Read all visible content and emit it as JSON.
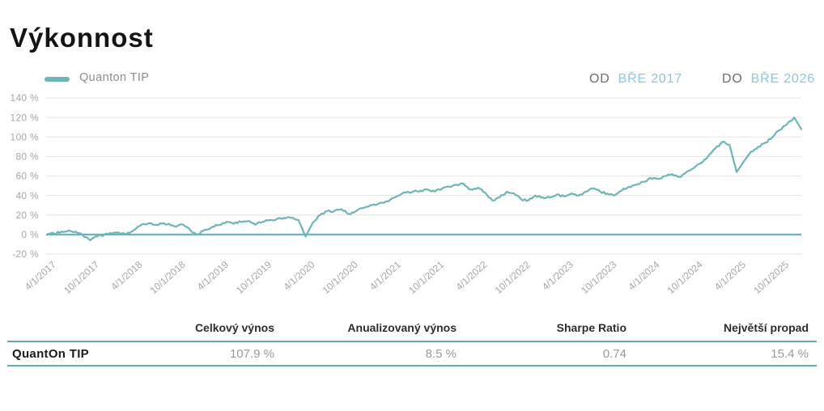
{
  "page": {
    "title": "Výkonnost"
  },
  "colors": {
    "accent_teal": "#6fb4b7",
    "accent_light_blue": "#8cc7e1",
    "grid_line": "#e3e3e3",
    "axis_text": "#a7a7a7",
    "table_border_teal": "#5fadb2"
  },
  "legend": {
    "series_label": "Quanton TIP"
  },
  "range_controls": {
    "from_label": "OD",
    "from_value": "BŘE 2017",
    "to_label": "DO",
    "to_value": "BŘE 2026"
  },
  "chart_data": {
    "type": "line",
    "title": "",
    "legend_position": "top-left",
    "grid": "horizontal-only",
    "zero_baseline": true,
    "y_unit": "%",
    "ylim": [
      -20,
      140
    ],
    "y_tick_labels": [
      "140 %",
      "120 %",
      "100 %",
      "80 %",
      "60 %",
      "40 %",
      "20 %",
      "0 %",
      "-20 %"
    ],
    "x_tick_labels": [
      "4/1/2017",
      "10/1/2017",
      "4/1/2018",
      "10/1/2018",
      "4/1/2019",
      "10/1/2019",
      "4/1/2020",
      "10/1/2020",
      "4/1/2021",
      "10/1/2021",
      "4/1/2022",
      "10/1/2022",
      "4/1/2023",
      "10/1/2023",
      "4/1/2024",
      "10/1/2024",
      "4/1/2025",
      "10/1/2025"
    ],
    "x_range": {
      "from": "BŘE 2017",
      "to": "BŘE 2026"
    },
    "series": [
      {
        "name": "Quanton TIP",
        "color": "#6fb4b7",
        "frequency": "monthly",
        "start_month": "2017-03",
        "values_pct": [
          0,
          1,
          3,
          4,
          3,
          -1,
          -6,
          -2,
          0,
          1,
          2,
          0,
          4,
          9,
          11,
          10,
          11,
          11,
          8,
          10,
          4,
          0,
          5,
          8,
          10,
          13,
          11,
          13,
          14,
          10,
          13,
          15,
          16,
          17,
          17,
          15,
          -2,
          12,
          20,
          24,
          24,
          26,
          21,
          24,
          27,
          30,
          31,
          33,
          37,
          40,
          43,
          44,
          45,
          46,
          44,
          47,
          49,
          51,
          52,
          46,
          48,
          43,
          35,
          38,
          44,
          42,
          36,
          35,
          40,
          38,
          38,
          41,
          39,
          42,
          40,
          44,
          47,
          44,
          42,
          40,
          45,
          49,
          51,
          54,
          58,
          57,
          60,
          62,
          59,
          64,
          68,
          73,
          80,
          88,
          95,
          92,
          64,
          75,
          85,
          90,
          94,
          100,
          107,
          113,
          120,
          107.9
        ]
      }
    ]
  },
  "table": {
    "columns": [
      "Celkový výnos",
      "Anualizovaný výnos",
      "Sharpe Ratio",
      "Největší propad"
    ],
    "rows": [
      {
        "name": "QuantOn TIP",
        "values": [
          "107.9 %",
          "8.5 %",
          "0.74",
          "15.4 %"
        ]
      }
    ]
  }
}
